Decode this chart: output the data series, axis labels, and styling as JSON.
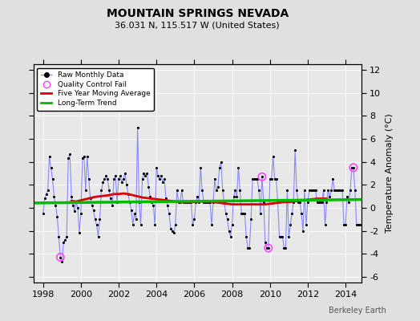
{
  "title": "MOUNTAIN SPRINGS NEVADA",
  "subtitle": "36.031 N, 115.517 W (United States)",
  "ylabel": "Temperature Anomaly (°C)",
  "credit": "Berkeley Earth",
  "xlim": [
    1997.5,
    2014.83
  ],
  "ylim": [
    -6.5,
    12.5
  ],
  "yticks_right": [
    -6,
    -4,
    -2,
    0,
    2,
    4,
    6,
    8,
    10,
    12
  ],
  "ytick_labels_right": [
    "-6",
    "-4",
    "-2",
    "0",
    "2",
    "4",
    "6",
    "8",
    "10",
    "12"
  ],
  "xticks": [
    1998,
    2000,
    2002,
    2004,
    2006,
    2008,
    2010,
    2012,
    2014
  ],
  "grid_yticks": [
    -6,
    -4,
    -2,
    0,
    2,
    4,
    6,
    8,
    10,
    12
  ],
  "bg_color": "#e8e8e8",
  "fig_bg_color": "#e0e0e0",
  "raw_color": "#8888ff",
  "dot_color": "#000000",
  "ma_color": "#dd0000",
  "trend_color": "#00bb00",
  "qc_color": "#ff44ff",
  "raw_data": [
    [
      1998.0,
      -0.5
    ],
    [
      1998.083,
      0.8
    ],
    [
      1998.167,
      1.2
    ],
    [
      1998.25,
      1.5
    ],
    [
      1998.333,
      4.5
    ],
    [
      1998.417,
      3.5
    ],
    [
      1998.5,
      2.5
    ],
    [
      1998.583,
      1.0
    ],
    [
      1998.667,
      0.2
    ],
    [
      1998.75,
      -0.8
    ],
    [
      1998.833,
      -2.5
    ],
    [
      1998.917,
      -4.3
    ],
    [
      1999.0,
      -4.7
    ],
    [
      1999.083,
      -3.0
    ],
    [
      1999.167,
      -2.8
    ],
    [
      1999.25,
      -2.5
    ],
    [
      1999.333,
      4.3
    ],
    [
      1999.417,
      4.7
    ],
    [
      1999.5,
      1.0
    ],
    [
      1999.583,
      0.2
    ],
    [
      1999.667,
      -0.3
    ],
    [
      1999.75,
      0.5
    ],
    [
      1999.833,
      0.0
    ],
    [
      1999.917,
      -2.2
    ],
    [
      2000.0,
      -0.5
    ],
    [
      2000.083,
      4.3
    ],
    [
      2000.167,
      4.5
    ],
    [
      2000.25,
      1.5
    ],
    [
      2000.333,
      4.5
    ],
    [
      2000.417,
      2.5
    ],
    [
      2000.5,
      0.8
    ],
    [
      2000.583,
      0.2
    ],
    [
      2000.667,
      -0.2
    ],
    [
      2000.75,
      -1.0
    ],
    [
      2000.833,
      -1.5
    ],
    [
      2000.917,
      -2.5
    ],
    [
      2001.0,
      -1.0
    ],
    [
      2001.083,
      1.5
    ],
    [
      2001.167,
      2.2
    ],
    [
      2001.25,
      2.5
    ],
    [
      2001.333,
      2.8
    ],
    [
      2001.417,
      2.5
    ],
    [
      2001.5,
      1.5
    ],
    [
      2001.583,
      0.8
    ],
    [
      2001.667,
      0.2
    ],
    [
      2001.75,
      2.5
    ],
    [
      2001.833,
      2.8
    ],
    [
      2001.917,
      0.5
    ],
    [
      2002.0,
      2.5
    ],
    [
      2002.083,
      2.8
    ],
    [
      2002.167,
      2.2
    ],
    [
      2002.25,
      2.5
    ],
    [
      2002.333,
      3.0
    ],
    [
      2002.417,
      2.0
    ],
    [
      2002.5,
      1.2
    ],
    [
      2002.583,
      0.5
    ],
    [
      2002.667,
      -0.2
    ],
    [
      2002.75,
      -1.5
    ],
    [
      2002.833,
      -0.5
    ],
    [
      2002.917,
      -1.0
    ],
    [
      2003.0,
      7.0
    ],
    [
      2003.083,
      0.5
    ],
    [
      2003.167,
      -1.5
    ],
    [
      2003.25,
      2.5
    ],
    [
      2003.333,
      3.0
    ],
    [
      2003.417,
      2.8
    ],
    [
      2003.5,
      3.0
    ],
    [
      2003.583,
      1.8
    ],
    [
      2003.667,
      1.0
    ],
    [
      2003.75,
      0.5
    ],
    [
      2003.833,
      0.2
    ],
    [
      2003.917,
      -1.5
    ],
    [
      2004.0,
      3.5
    ],
    [
      2004.083,
      2.8
    ],
    [
      2004.167,
      2.5
    ],
    [
      2004.25,
      2.8
    ],
    [
      2004.333,
      2.2
    ],
    [
      2004.417,
      2.5
    ],
    [
      2004.5,
      0.8
    ],
    [
      2004.583,
      0.2
    ],
    [
      2004.667,
      -0.5
    ],
    [
      2004.75,
      -1.8
    ],
    [
      2004.833,
      -2.0
    ],
    [
      2004.917,
      -2.2
    ],
    [
      2005.0,
      -1.5
    ],
    [
      2005.083,
      1.5
    ],
    [
      2005.167,
      0.5
    ],
    [
      2005.25,
      0.5
    ],
    [
      2005.333,
      1.5
    ],
    [
      2005.417,
      0.5
    ],
    [
      2005.5,
      0.5
    ],
    [
      2005.583,
      0.5
    ],
    [
      2005.667,
      0.5
    ],
    [
      2005.75,
      0.5
    ],
    [
      2005.833,
      0.5
    ],
    [
      2005.917,
      -1.5
    ],
    [
      2006.0,
      -1.0
    ],
    [
      2006.083,
      0.5
    ],
    [
      2006.167,
      1.0
    ],
    [
      2006.25,
      0.5
    ],
    [
      2006.333,
      3.5
    ],
    [
      2006.417,
      1.5
    ],
    [
      2006.5,
      0.5
    ],
    [
      2006.583,
      0.5
    ],
    [
      2006.667,
      0.5
    ],
    [
      2006.75,
      0.5
    ],
    [
      2006.833,
      0.5
    ],
    [
      2006.917,
      -1.5
    ],
    [
      2007.0,
      0.5
    ],
    [
      2007.083,
      2.5
    ],
    [
      2007.167,
      1.5
    ],
    [
      2007.25,
      1.8
    ],
    [
      2007.333,
      3.5
    ],
    [
      2007.417,
      4.0
    ],
    [
      2007.5,
      1.5
    ],
    [
      2007.583,
      0.5
    ],
    [
      2007.667,
      -0.5
    ],
    [
      2007.75,
      -1.0
    ],
    [
      2007.833,
      -2.0
    ],
    [
      2007.917,
      -2.5
    ],
    [
      2008.0,
      -1.5
    ],
    [
      2008.083,
      1.0
    ],
    [
      2008.167,
      1.5
    ],
    [
      2008.25,
      1.0
    ],
    [
      2008.333,
      3.5
    ],
    [
      2008.417,
      1.5
    ],
    [
      2008.5,
      -0.5
    ],
    [
      2008.583,
      -0.5
    ],
    [
      2008.667,
      -0.5
    ],
    [
      2008.75,
      -2.5
    ],
    [
      2008.833,
      -3.5
    ],
    [
      2008.917,
      -3.5
    ],
    [
      2009.0,
      -1.0
    ],
    [
      2009.083,
      2.5
    ],
    [
      2009.167,
      2.5
    ],
    [
      2009.25,
      2.5
    ],
    [
      2009.333,
      2.5
    ],
    [
      2009.417,
      1.5
    ],
    [
      2009.5,
      -0.5
    ],
    [
      2009.583,
      2.7
    ],
    [
      2009.667,
      0.5
    ],
    [
      2009.75,
      -3.0
    ],
    [
      2009.833,
      -3.5
    ],
    [
      2009.917,
      -3.5
    ],
    [
      2010.0,
      2.5
    ],
    [
      2010.083,
      2.5
    ],
    [
      2010.167,
      4.5
    ],
    [
      2010.25,
      2.5
    ],
    [
      2010.333,
      2.5
    ],
    [
      2010.417,
      0.5
    ],
    [
      2010.5,
      -2.5
    ],
    [
      2010.583,
      -2.5
    ],
    [
      2010.667,
      -2.5
    ],
    [
      2010.75,
      -3.5
    ],
    [
      2010.833,
      -3.5
    ],
    [
      2010.917,
      1.5
    ],
    [
      2011.0,
      -2.5
    ],
    [
      2011.083,
      -1.5
    ],
    [
      2011.167,
      -0.5
    ],
    [
      2011.25,
      0.5
    ],
    [
      2011.333,
      5.0
    ],
    [
      2011.417,
      1.5
    ],
    [
      2011.5,
      0.5
    ],
    [
      2011.583,
      0.5
    ],
    [
      2011.667,
      -0.5
    ],
    [
      2011.75,
      -2.0
    ],
    [
      2011.833,
      1.5
    ],
    [
      2011.917,
      -1.5
    ],
    [
      2012.0,
      0.5
    ],
    [
      2012.083,
      1.5
    ],
    [
      2012.167,
      1.5
    ],
    [
      2012.25,
      1.5
    ],
    [
      2012.333,
      1.5
    ],
    [
      2012.417,
      1.5
    ],
    [
      2012.5,
      0.5
    ],
    [
      2012.583,
      0.5
    ],
    [
      2012.667,
      0.5
    ],
    [
      2012.75,
      0.5
    ],
    [
      2012.833,
      1.5
    ],
    [
      2012.917,
      -1.5
    ],
    [
      2013.0,
      0.5
    ],
    [
      2013.083,
      1.5
    ],
    [
      2013.167,
      1.0
    ],
    [
      2013.25,
      1.5
    ],
    [
      2013.333,
      2.5
    ],
    [
      2013.417,
      1.5
    ],
    [
      2013.5,
      1.5
    ],
    [
      2013.583,
      1.5
    ],
    [
      2013.667,
      1.5
    ],
    [
      2013.75,
      1.5
    ],
    [
      2013.833,
      1.5
    ],
    [
      2013.917,
      -1.5
    ],
    [
      2014.0,
      -1.5
    ],
    [
      2014.083,
      1.0
    ],
    [
      2014.167,
      0.5
    ],
    [
      2014.25,
      1.5
    ],
    [
      2014.333,
      3.5
    ],
    [
      2014.417,
      3.5
    ],
    [
      2014.5,
      1.5
    ],
    [
      2014.583,
      -1.5
    ],
    [
      2014.667,
      -1.5
    ],
    [
      2014.75,
      -1.5
    ]
  ],
  "qc_fail": [
    [
      1998.917,
      -4.3
    ],
    [
      2009.583,
      2.7
    ],
    [
      2009.917,
      -3.5
    ],
    [
      2014.417,
      3.5
    ]
  ],
  "moving_avg": [
    [
      1999.5,
      0.6
    ],
    [
      1999.75,
      0.55
    ],
    [
      2000.0,
      0.65
    ],
    [
      2000.25,
      0.75
    ],
    [
      2000.5,
      0.85
    ],
    [
      2000.75,
      0.95
    ],
    [
      2001.0,
      1.0
    ],
    [
      2001.25,
      1.05
    ],
    [
      2001.5,
      1.1
    ],
    [
      2001.75,
      1.2
    ],
    [
      2002.0,
      1.2
    ],
    [
      2002.25,
      1.25
    ],
    [
      2002.5,
      1.2
    ],
    [
      2002.75,
      1.1
    ],
    [
      2003.0,
      1.0
    ],
    [
      2003.25,
      0.9
    ],
    [
      2003.5,
      0.85
    ],
    [
      2003.75,
      0.8
    ],
    [
      2004.0,
      0.75
    ],
    [
      2004.25,
      0.7
    ],
    [
      2004.5,
      0.65
    ],
    [
      2004.75,
      0.6
    ],
    [
      2005.0,
      0.55
    ],
    [
      2005.25,
      0.5
    ],
    [
      2005.5,
      0.5
    ],
    [
      2005.75,
      0.5
    ],
    [
      2006.0,
      0.5
    ],
    [
      2006.25,
      0.55
    ],
    [
      2006.5,
      0.55
    ],
    [
      2006.75,
      0.55
    ],
    [
      2007.0,
      0.5
    ],
    [
      2007.25,
      0.45
    ],
    [
      2007.5,
      0.4
    ],
    [
      2007.75,
      0.35
    ],
    [
      2008.0,
      0.3
    ],
    [
      2008.25,
      0.3
    ],
    [
      2008.5,
      0.3
    ],
    [
      2008.75,
      0.3
    ],
    [
      2009.0,
      0.3
    ],
    [
      2009.25,
      0.3
    ],
    [
      2009.5,
      0.3
    ],
    [
      2009.75,
      0.3
    ],
    [
      2010.0,
      0.35
    ],
    [
      2010.25,
      0.4
    ],
    [
      2010.5,
      0.45
    ],
    [
      2010.75,
      0.5
    ],
    [
      2011.0,
      0.5
    ],
    [
      2011.25,
      0.55
    ],
    [
      2011.5,
      0.6
    ],
    [
      2011.75,
      0.65
    ],
    [
      2012.0,
      0.7
    ],
    [
      2012.25,
      0.75
    ],
    [
      2012.5,
      0.8
    ],
    [
      2012.75,
      0.8
    ],
    [
      2013.0,
      0.8
    ]
  ],
  "trend_x": [
    1997.5,
    2014.83
  ],
  "trend_y": [
    0.42,
    0.72
  ]
}
